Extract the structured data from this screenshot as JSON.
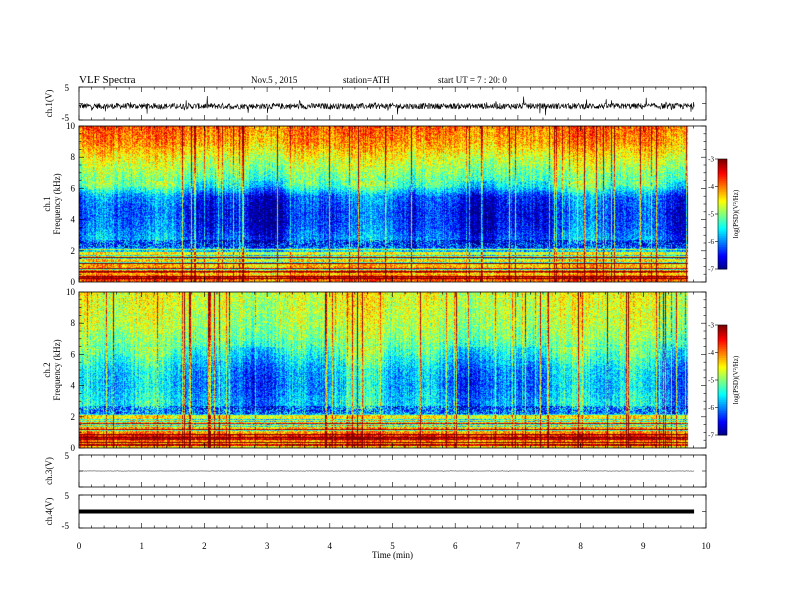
{
  "header": {
    "title": "VLF  Spectra",
    "date": "Nov.5  , 2015",
    "station": "station=ATH",
    "start": "start  UT  =   7  : 20: 0"
  },
  "chart_data": [
    {
      "type": "line",
      "name": "ch1-waveform",
      "ylabel": "ch.1(V)",
      "ylim": [
        -5,
        5
      ],
      "yticks": [
        "5",
        "-5"
      ],
      "xlim": [
        0,
        10
      ],
      "signal": {
        "mean": -0.8,
        "noise": 0.9,
        "spikes": 2.5
      }
    },
    {
      "type": "heatmap",
      "name": "ch1-spectrogram",
      "ylabel": [
        "ch.1",
        "Frequency (kHz)"
      ],
      "ylim": [
        0,
        10
      ],
      "yticks": [
        "0",
        "2",
        "4",
        "6",
        "8",
        "10"
      ],
      "xlim": [
        0,
        10
      ],
      "xmax_data": 9.8,
      "colorbar": {
        "label": "log(PSD)(V²/Hz)",
        "range": [
          -7,
          -3
        ],
        "ticks": [
          "-3",
          "-4",
          "-5",
          "-6",
          "-7"
        ]
      },
      "profile": [
        {
          "f": 0.0,
          "v": -4.2
        },
        {
          "f": 0.3,
          "v": -3.4
        },
        {
          "f": 0.8,
          "v": -5.3
        },
        {
          "f": 1.5,
          "v": -5.5
        },
        {
          "f": 2.4,
          "v": -5.9
        },
        {
          "f": 3.5,
          "v": -6.3
        },
        {
          "f": 4.5,
          "v": -6.4
        },
        {
          "f": 5.5,
          "v": -6.2
        },
        {
          "f": 6.2,
          "v": -5.3
        },
        {
          "f": 7.0,
          "v": -5.0
        },
        {
          "f": 8.0,
          "v": -4.6
        },
        {
          "f": 9.0,
          "v": -4.1
        },
        {
          "f": 10.0,
          "v": -3.9
        }
      ]
    },
    {
      "type": "heatmap",
      "name": "ch2-spectrogram",
      "ylabel": [
        "ch.2",
        "Frequency (kHz)"
      ],
      "ylim": [
        0,
        10
      ],
      "yticks": [
        "0",
        "2",
        "4",
        "6",
        "8",
        "10"
      ],
      "xlim": [
        0,
        10
      ],
      "xmax_data": 9.8,
      "colorbar": {
        "label": "log(PSD)(V²/Hz)",
        "range": [
          -7,
          -3
        ],
        "ticks": [
          "-3",
          "-4",
          "-5",
          "-6",
          "-7"
        ]
      },
      "profile": [
        {
          "f": 0.0,
          "v": -4.5
        },
        {
          "f": 0.5,
          "v": -4.0
        },
        {
          "f": 1.0,
          "v": -5.2
        },
        {
          "f": 2.0,
          "v": -5.6
        },
        {
          "f": 3.0,
          "v": -5.7
        },
        {
          "f": 4.0,
          "v": -5.9
        },
        {
          "f": 5.0,
          "v": -5.8
        },
        {
          "f": 6.0,
          "v": -5.4
        },
        {
          "f": 7.0,
          "v": -5.0
        },
        {
          "f": 8.0,
          "v": -4.8
        },
        {
          "f": 9.0,
          "v": -4.7
        },
        {
          "f": 10.0,
          "v": -4.6
        }
      ]
    },
    {
      "type": "line",
      "name": "ch3-waveform",
      "ylabel": "ch.3(V)",
      "ylim": [
        -5,
        5
      ],
      "yticks": [
        "5"
      ],
      "xlim": [
        0,
        10
      ],
      "signal": {
        "mean": 0.0,
        "noise": 0.05,
        "spikes": 0.2
      }
    },
    {
      "type": "line",
      "name": "ch4-waveform",
      "ylabel": "ch.4(V)",
      "ylim": [
        -5,
        5
      ],
      "yticks": [
        "5",
        "-5"
      ],
      "xlim": [
        0,
        10
      ],
      "signal": {
        "mean": 0.0,
        "noise": 0.0,
        "spikes": 0.0
      }
    }
  ],
  "xaxis": {
    "label": "Time  (min)",
    "ticks": [
      "0",
      "1",
      "2",
      "3",
      "4",
      "5",
      "6",
      "7",
      "8",
      "9",
      "10"
    ]
  }
}
